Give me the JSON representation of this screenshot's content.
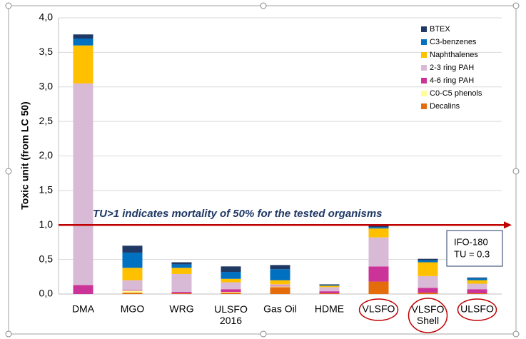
{
  "chart_data": {
    "type": "stacked_bar",
    "y_label": "Toxic unit (from LC 50)",
    "categories": [
      "DMA",
      "MGO",
      "WRG",
      "ULSFO\n2016",
      "Gas Oil",
      "HDME",
      "VLSFO",
      "VLSFO\nShell",
      "ULSFO"
    ],
    "series": [
      {
        "name": "Decalins",
        "color": "#e46c0a",
        "values": [
          0,
          0.02,
          0.01,
          0.02,
          0.1,
          0.01,
          0.18,
          0.02,
          0.01
        ]
      },
      {
        "name": "C0-C5 phenols",
        "color": "#ffff99",
        "values": [
          0,
          0.03,
          0,
          0.01,
          0.01,
          0,
          0,
          0,
          0
        ]
      },
      {
        "name": "4-6 ring PAH",
        "color": "#cc3399",
        "values": [
          0.13,
          0.01,
          0.02,
          0.04,
          0.01,
          0.03,
          0.22,
          0.07,
          0.06
        ]
      },
      {
        "name": "2-3 ring PAH",
        "color": "#d9bad6",
        "values": [
          2.92,
          0.14,
          0.26,
          0.1,
          0.02,
          0.06,
          0.42,
          0.17,
          0.08
        ]
      },
      {
        "name": "Naphthalenes",
        "color": "#ffc000",
        "values": [
          0.55,
          0.18,
          0.09,
          0.05,
          0.06,
          0.02,
          0.13,
          0.2,
          0.05
        ]
      },
      {
        "name": "C3-benzenes",
        "color": "#0070c0",
        "values": [
          0.1,
          0.22,
          0.05,
          0.1,
          0.16,
          0.01,
          0.02,
          0.03,
          0.03
        ]
      },
      {
        "name": "BTEX",
        "color": "#1f3864",
        "values": [
          0.06,
          0.1,
          0.03,
          0.08,
          0.06,
          0.01,
          0.02,
          0.02,
          0.01
        ]
      }
    ],
    "ylim": [
      0,
      4
    ],
    "yticks": [
      {
        "value": 0,
        "label": "0,0"
      },
      {
        "value": 0.5,
        "label": "0,5"
      },
      {
        "value": 1,
        "label": "1,0"
      },
      {
        "value": 1.5,
        "label": "1,5"
      },
      {
        "value": 2,
        "label": "2,0"
      },
      {
        "value": 2.5,
        "label": "2,5"
      },
      {
        "value": 3,
        "label": "3,0"
      },
      {
        "value": 3.5,
        "label": "3,5"
      },
      {
        "value": 4,
        "label": "4,0"
      }
    ],
    "grid": true,
    "legend": "top-right",
    "reference_line": {
      "value": 1,
      "label": "TU>1 indicates mortality of 50% for the tested organisms",
      "color": "#c00000"
    },
    "note_box": [
      "IFO-180",
      "TU = 0.3"
    ],
    "circled_categories": [
      6,
      7,
      8
    ]
  }
}
